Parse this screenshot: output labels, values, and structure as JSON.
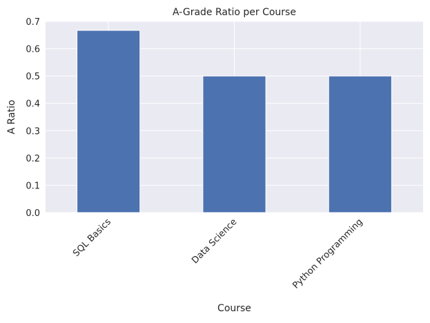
{
  "chart_data": {
    "type": "bar",
    "title": "A-Grade Ratio per Course",
    "xlabel": "Course",
    "ylabel": "A Ratio",
    "categories": [
      "SQL Basics",
      "Data Science",
      "Python Programming"
    ],
    "values": [
      0.667,
      0.5,
      0.5
    ],
    "ylim": [
      0,
      0.7
    ],
    "yticks": [
      "0.0",
      "0.1",
      "0.2",
      "0.3",
      "0.4",
      "0.5",
      "0.6",
      "0.7"
    ],
    "xtick_rotation": 45,
    "grid": true,
    "legend": "none",
    "colors": {
      "bar": "#4c72b0",
      "background": "#eaeaf2",
      "grid": "#ffffff"
    }
  }
}
